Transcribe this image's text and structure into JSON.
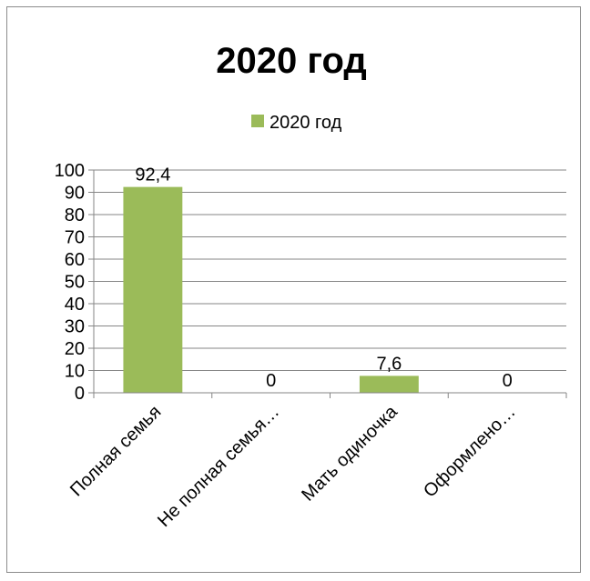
{
  "chart_data": {
    "type": "bar",
    "title": "2020 год",
    "categories": [
      "Полная семья",
      "Не полная семья…",
      "Мать одиночка",
      "Оформлено…"
    ],
    "series": [
      {
        "name": "2020 год",
        "values": [
          92.4,
          0,
          7.6,
          0
        ],
        "data_labels": [
          "92,4",
          "0",
          "7,6",
          "0"
        ],
        "color": "#9bbb59"
      }
    ],
    "y_ticks": [
      "0",
      "10",
      "20",
      "30",
      "40",
      "50",
      "60",
      "70",
      "80",
      "90",
      "100"
    ],
    "ylim": [
      0,
      100
    ],
    "grid": true,
    "legend_position": "top"
  }
}
